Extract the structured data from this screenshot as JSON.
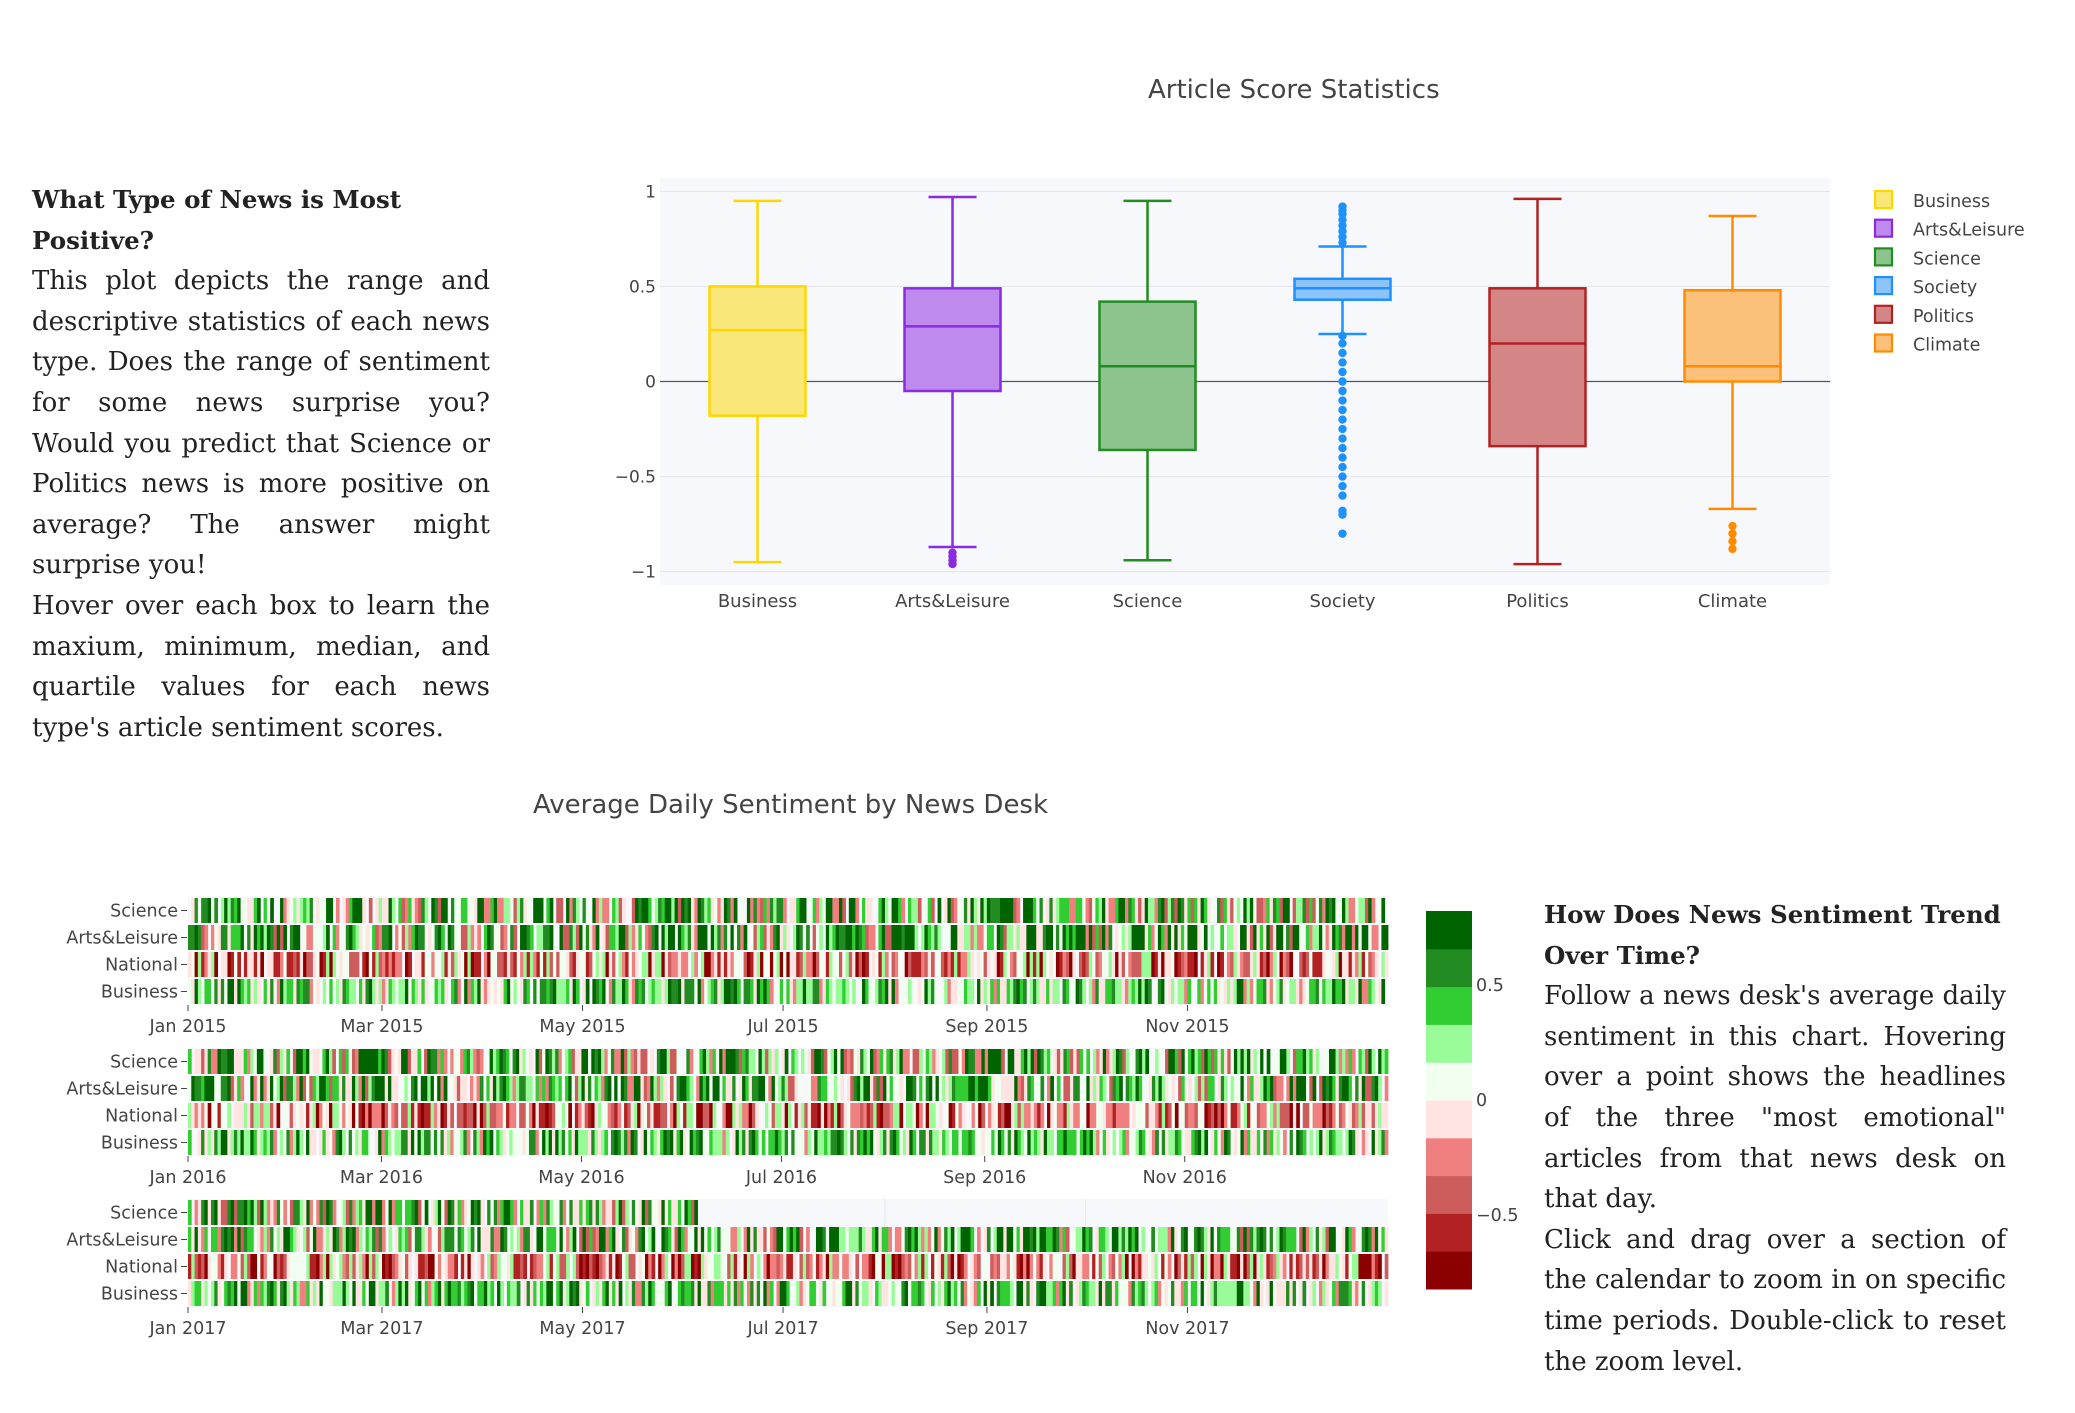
{
  "text_left": {
    "heading": "What Type of News is Most Positive?",
    "p1": "This plot depicts the range and descriptive statistics of each news type. Does the range of sentiment for some news surprise you? Would you predict that Science or Politics news is more positive on average? The answer might surprise you!",
    "p2": "Hover over each box to learn the maxium, minimum, median, and quartile values for each news type's article sentiment scores."
  },
  "text_right": {
    "heading": "How Does News Sentiment Trend Over Time?",
    "p1": "Follow a news desk's average daily sentiment in this chart. Hovering over a point shows the headlines of the three \"most emotional\" articles from that news desk on that day.",
    "p2": "Click and drag over a section of the calendar to zoom in on specific time periods. Double-click to reset the zoom level."
  },
  "chart_data": [
    {
      "type": "box",
      "title": "Article Score Statistics",
      "ylim": [
        -1.07,
        1.07
      ],
      "yticks": [
        1,
        0.5,
        0,
        -0.5,
        -1
      ],
      "ytick_labels": [
        "1",
        "0.5",
        "0",
        "−0.5",
        "−1"
      ],
      "grid": true,
      "legend_position": "top-right",
      "series": [
        {
          "name": "Business",
          "color": "#FFD700",
          "fill": "#F9E77A",
          "min": -0.95,
          "q1": -0.18,
          "median": 0.27,
          "q3": 0.5,
          "max": 0.95,
          "outliers": []
        },
        {
          "name": "Arts&Leisure",
          "color": "#8A2BE2",
          "fill": "#BE8AEE",
          "min": -0.87,
          "q1": -0.05,
          "median": 0.29,
          "q3": 0.49,
          "max": 0.97,
          "outliers": [
            -0.9,
            -0.92,
            -0.94,
            -0.96
          ]
        },
        {
          "name": "Science",
          "color": "#228B22",
          "fill": "#8DC48D",
          "min": -0.94,
          "q1": -0.36,
          "median": 0.08,
          "q3": 0.42,
          "max": 0.95,
          "outliers": []
        },
        {
          "name": "Society",
          "color": "#1E90FF",
          "fill": "#8CC4FA",
          "min": 0.25,
          "q1": 0.43,
          "median": 0.49,
          "q3": 0.54,
          "max": 0.71,
          "outliers": [
            0.73,
            0.76,
            0.79,
            0.82,
            0.85,
            0.88,
            0.9,
            0.92,
            0.24,
            0.2,
            0.15,
            0.1,
            0.05,
            0.0,
            -0.05,
            -0.1,
            -0.15,
            -0.2,
            -0.25,
            -0.3,
            -0.35,
            -0.4,
            -0.45,
            -0.5,
            -0.55,
            -0.6,
            -0.68,
            -0.7,
            -0.8
          ]
        },
        {
          "name": "Politics",
          "color": "#B22222",
          "fill": "#D48686",
          "min": -0.96,
          "q1": -0.34,
          "median": 0.2,
          "q3": 0.49,
          "max": 0.96,
          "outliers": []
        },
        {
          "name": "Climate",
          "color": "#FF8C00",
          "fill": "#FBC07A",
          "min": -0.67,
          "q1": 0.0,
          "median": 0.08,
          "q3": 0.48,
          "max": 0.87,
          "outliers": [
            -0.76,
            -0.8,
            -0.84,
            -0.88
          ]
        }
      ]
    },
    {
      "type": "heatmap",
      "title": "Average Daily Sentiment by News Desk",
      "rows": [
        "Science",
        "Arts&Leisure",
        "National",
        "Business"
      ],
      "colorscale": [
        "#8B0000",
        "#B22222",
        "#CD5C5C",
        "#F08080",
        "#FFE4E1",
        "#F0FFF0",
        "#98FB98",
        "#32CD32",
        "#228B22",
        "#006400"
      ],
      "colorbar": {
        "ticks": [
          0.5,
          0,
          -0.5
        ],
        "tick_labels": [
          "0.5",
          "0",
          "−0.5"
        ],
        "range": [
          -0.82,
          0.82
        ]
      },
      "panels": [
        {
          "year": "2015",
          "tick_labels": [
            "Jan 2015",
            "Mar 2015",
            "May 2015",
            "Jul 2015",
            "Sep 2015",
            "Nov 2015"
          ],
          "science_days": 365
        },
        {
          "year": "2016",
          "tick_labels": [
            "Jan 2016",
            "Mar 2016",
            "May 2016",
            "Jul 2016",
            "Sep 2016",
            "Nov 2016"
          ],
          "science_days": 366
        },
        {
          "year": "2017",
          "tick_labels": [
            "Jan 2017",
            "Mar 2017",
            "May 2017",
            "Jul 2017",
            "Sep 2017",
            "Nov 2017"
          ],
          "science_days": 155
        }
      ]
    }
  ]
}
